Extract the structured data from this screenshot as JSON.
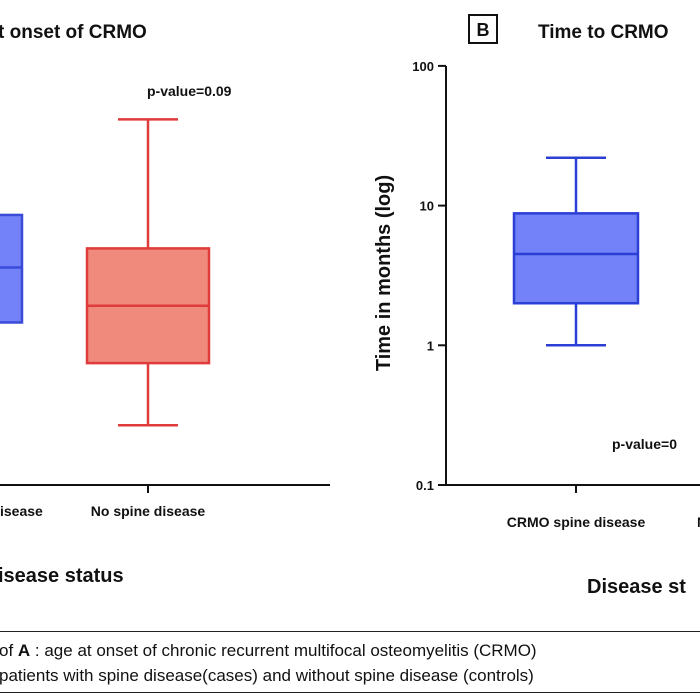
{
  "chart_data": [
    {
      "panel": "A",
      "type": "box",
      "title": "t onset of CRMO",
      "xlabel": "isease status",
      "ylabel": "",
      "categories": [
        "isease",
        "No spine disease"
      ],
      "colors": [
        "#3b4bd9",
        "#e03b3b"
      ],
      "fills": [
        "#7382f8",
        "#ef8a7c"
      ],
      "boxes": [
        {
          "name": "isease",
          "whisker_low": null,
          "q1": 6.8,
          "median": 9.1,
          "q3": 11.3,
          "whisker_high": null
        },
        {
          "name": "No spine disease",
          "whisker_low": 2.5,
          "q1": 5.1,
          "median": 7.5,
          "q3": 9.9,
          "whisker_high": 15.3
        }
      ],
      "annotation": "p-value=0.09"
    },
    {
      "panel": "B",
      "type": "box",
      "title": "Time to CRMO",
      "xlabel": "Disease st",
      "ylabel": "Time in months (log)",
      "yscale": "log",
      "ylim": [
        0.1,
        100
      ],
      "yticks": [
        "0.1",
        "1",
        "10",
        "100"
      ],
      "categories": [
        "CRMO spine disease",
        "N"
      ],
      "colors": [
        "#2b3fd6"
      ],
      "fills": [
        "#7382f8"
      ],
      "boxes": [
        {
          "name": "CRMO spine disease",
          "whisker_low": 1,
          "q1": 2.0,
          "median": 4.5,
          "q3": 8.8,
          "whisker_high": 22
        }
      ],
      "annotation": "p-value=0"
    }
  ],
  "caption": {
    "line1_prefix": "of ",
    "line1_bold": "A",
    "line1_rest": " : age at onset of chronic recurrent multifocal osteomyelitis (CRMO)",
    "line2": " patients with spine disease(cases) and without spine disease (controls)"
  }
}
